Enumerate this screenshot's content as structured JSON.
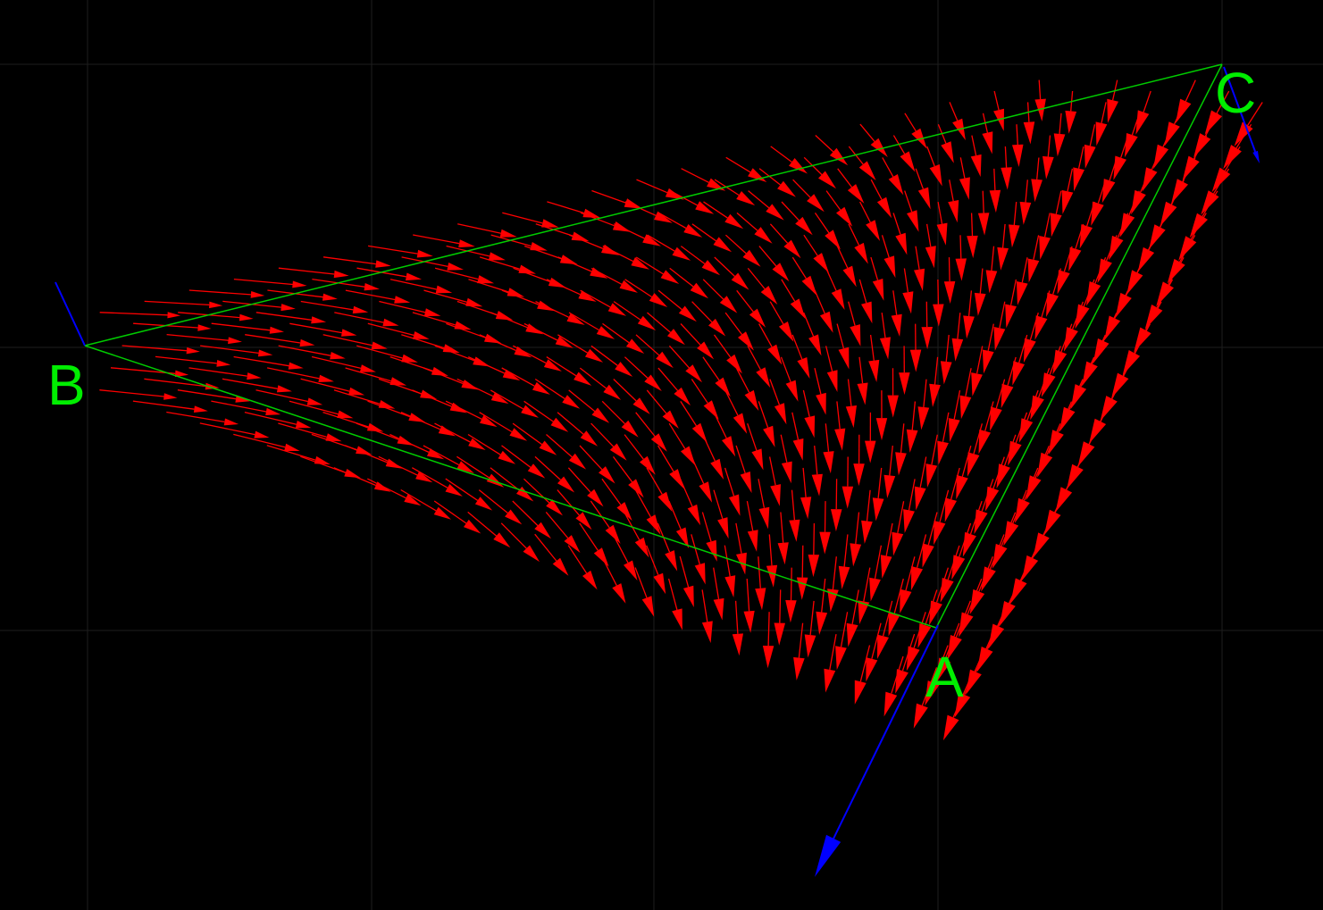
{
  "diagram": {
    "type": "triangle-vector-field",
    "colors": {
      "background": "#000000",
      "grid": "#1e1e1e",
      "edge": "#00cc00",
      "label": "#00ee00",
      "field_arrow": "#ff0000",
      "vertex_vector": "#0000ff"
    },
    "vertices": [
      {
        "name": "A",
        "label": "A"
      },
      {
        "name": "B",
        "label": "B"
      },
      {
        "name": "C",
        "label": "C"
      }
    ],
    "edges": [
      [
        "A",
        "B"
      ],
      [
        "B",
        "C"
      ],
      [
        "C",
        "A"
      ]
    ],
    "field_arrow_count": "dense",
    "vertex_vectors": [
      {
        "vertex": "A",
        "icon": "blue-arrow-icon"
      },
      {
        "vertex": "B",
        "icon": "blue-arrow-icon"
      },
      {
        "vertex": "C",
        "icon": "blue-arrow-icon"
      }
    ]
  }
}
